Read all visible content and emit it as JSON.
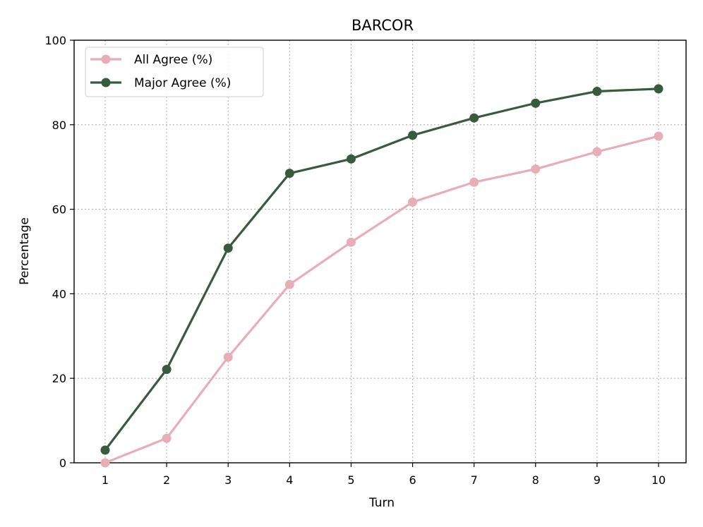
{
  "chart_data": {
    "type": "line",
    "title": "BARCOR",
    "xlabel": "Turn",
    "ylabel": "Percentage",
    "x": [
      1,
      2,
      3,
      4,
      5,
      6,
      7,
      8,
      9,
      10
    ],
    "xticks": [
      "1",
      "2",
      "3",
      "4",
      "5",
      "6",
      "7",
      "8",
      "9",
      "10"
    ],
    "yticks": [
      "0",
      "20",
      "40",
      "60",
      "80",
      "100"
    ],
    "ylim": [
      0,
      100
    ],
    "grid": true,
    "legend_position": "top-left",
    "series": [
      {
        "name": "All Agree (%)",
        "color": "#e8aeb6",
        "values": [
          0.0,
          5.8,
          25.0,
          42.2,
          52.2,
          61.7,
          66.4,
          69.5,
          73.6,
          77.3
        ]
      },
      {
        "name": "Major Agree (%)",
        "color": "#385b3d",
        "values": [
          3.0,
          22.1,
          50.8,
          68.5,
          71.9,
          77.5,
          81.6,
          85.1,
          87.9,
          88.5
        ]
      }
    ]
  }
}
